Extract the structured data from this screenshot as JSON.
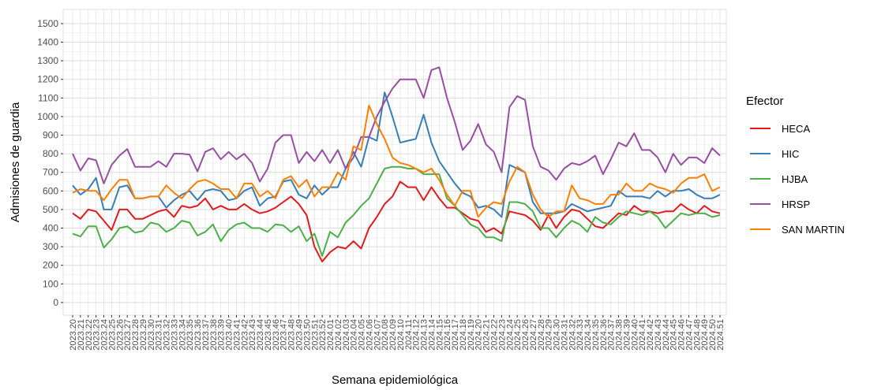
{
  "chart_data": {
    "type": "line",
    "x_label": "Semana epidemiológica",
    "y_label": "Admisiones de guardia",
    "legend_title": "Efector",
    "legend_position": "right",
    "grid": true,
    "categories": [
      "2023.20",
      "2023.21",
      "2023.22",
      "2023.23",
      "2023.24",
      "2023.25",
      "2023.26",
      "2023.27",
      "2023.28",
      "2023.29",
      "2023.30",
      "2023.31",
      "2023.32",
      "2023.33",
      "2023.34",
      "2023.35",
      "2023.36",
      "2023.37",
      "2023.38",
      "2023.39",
      "2023.40",
      "2023.41",
      "2023.42",
      "2023.43",
      "2023.44",
      "2023.45",
      "2023.46",
      "2023.47",
      "2023.48",
      "2023.49",
      "2023.50",
      "2023.51",
      "2023.52",
      "2024.01",
      "2024.02",
      "2024.03",
      "2024.04",
      "2024.05",
      "2024.06",
      "2024.07",
      "2024.08",
      "2024.09",
      "2024.10",
      "2024.11",
      "2024.12",
      "2024.13",
      "2024.14",
      "2024.15",
      "2024.16",
      "2024.17",
      "2024.18",
      "2024.19",
      "2024.20",
      "2024.21",
      "2024.22",
      "2024.23",
      "2024.24",
      "2024.25",
      "2024.26",
      "2024.27",
      "2024.28",
      "2024.29",
      "2024.30",
      "2024.31",
      "2024.32",
      "2024.33",
      "2024.34",
      "2024.35",
      "2024.36",
      "2024.37",
      "2024.38",
      "2024.39",
      "2024.40",
      "2024.41",
      "2024.42",
      "2024.43",
      "2024.44",
      "2024.45",
      "2024.46",
      "2024.47",
      "2024.48",
      "2024.49",
      "2024.50",
      "2024.51"
    ],
    "ylim": [
      -68,
      1576
    ],
    "yticks": [
      0,
      100,
      200,
      300,
      400,
      500,
      600,
      700,
      800,
      900,
      1000,
      1100,
      1200,
      1300,
      1400,
      1500
    ],
    "series": [
      {
        "name": "HECA",
        "color": "#e41a1c",
        "values": [
          480,
          450,
          500,
          490,
          440,
          390,
          500,
          500,
          450,
          450,
          470,
          490,
          500,
          460,
          520,
          510,
          520,
          560,
          500,
          520,
          500,
          500,
          530,
          500,
          480,
          490,
          510,
          540,
          570,
          530,
          470,
          300,
          220,
          270,
          300,
          290,
          330,
          290,
          400,
          460,
          530,
          570,
          650,
          620,
          620,
          550,
          620,
          560,
          510,
          510,
          480,
          450,
          440,
          380,
          400,
          370,
          490,
          480,
          470,
          440,
          390,
          470,
          400,
          460,
          500,
          490,
          450,
          410,
          400,
          440,
          480,
          470,
          520,
          490,
          490,
          480,
          490,
          490,
          530,
          500,
          480,
          520,
          490,
          480
        ]
      },
      {
        "name": "HIC",
        "color": "#377eb8",
        "values": [
          630,
          580,
          610,
          670,
          500,
          500,
          620,
          630,
          560,
          560,
          570,
          570,
          510,
          550,
          580,
          600,
          550,
          600,
          610,
          600,
          550,
          560,
          600,
          620,
          520,
          560,
          570,
          650,
          660,
          580,
          560,
          630,
          580,
          620,
          620,
          720,
          810,
          730,
          890,
          870,
          1130,
          1000,
          860,
          870,
          880,
          1010,
          860,
          760,
          700,
          640,
          590,
          570,
          510,
          520,
          500,
          460,
          740,
          720,
          700,
          540,
          480,
          480,
          480,
          490,
          530,
          510,
          490,
          500,
          510,
          520,
          600,
          570,
          570,
          570,
          560,
          600,
          570,
          600,
          600,
          610,
          580,
          560,
          560,
          580
        ]
      },
      {
        "name": "HJBA",
        "color": "#4daf4a",
        "values": [
          370,
          355,
          410,
          410,
          295,
          340,
          400,
          410,
          375,
          385,
          430,
          420,
          380,
          400,
          440,
          430,
          360,
          380,
          420,
          330,
          390,
          420,
          430,
          400,
          400,
          380,
          420,
          415,
          380,
          410,
          330,
          370,
          250,
          380,
          350,
          430,
          470,
          520,
          560,
          640,
          720,
          730,
          730,
          720,
          720,
          690,
          690,
          690,
          560,
          520,
          470,
          420,
          400,
          350,
          350,
          330,
          540,
          540,
          530,
          490,
          400,
          400,
          350,
          400,
          440,
          420,
          380,
          460,
          430,
          420,
          460,
          490,
          480,
          470,
          490,
          460,
          400,
          440,
          480,
          470,
          480,
          480,
          460,
          470
        ]
      },
      {
        "name": "HRSP",
        "color": "#984ea3",
        "values": [
          800,
          710,
          775,
          765,
          640,
          740,
          790,
          825,
          730,
          730,
          730,
          760,
          730,
          800,
          800,
          795,
          705,
          810,
          830,
          770,
          810,
          770,
          800,
          750,
          650,
          720,
          860,
          900,
          900,
          750,
          810,
          760,
          820,
          750,
          820,
          720,
          780,
          890,
          890,
          1000,
          1080,
          1150,
          1200,
          1200,
          1200,
          1100,
          1250,
          1265,
          1100,
          970,
          820,
          870,
          960,
          850,
          810,
          700,
          1050,
          1110,
          1090,
          840,
          730,
          710,
          660,
          720,
          750,
          740,
          760,
          790,
          690,
          770,
          860,
          840,
          910,
          820,
          820,
          780,
          700,
          800,
          740,
          780,
          780,
          750,
          830,
          790
        ]
      },
      {
        "name": "SAN MARTIN",
        "color": "#ff7f00",
        "values": [
          590,
          610,
          600,
          600,
          550,
          610,
          660,
          660,
          560,
          560,
          570,
          570,
          630,
          590,
          560,
          610,
          650,
          660,
          640,
          610,
          610,
          560,
          640,
          640,
          570,
          600,
          560,
          660,
          680,
          620,
          660,
          570,
          620,
          620,
          700,
          660,
          840,
          820,
          1060,
          960,
          880,
          780,
          750,
          740,
          720,
          700,
          720,
          660,
          580,
          520,
          600,
          600,
          460,
          510,
          540,
          530,
          650,
          730,
          700,
          580,
          500,
          460,
          490,
          490,
          630,
          560,
          550,
          530,
          530,
          580,
          580,
          640,
          600,
          600,
          640,
          620,
          610,
          590,
          640,
          670,
          670,
          690,
          600,
          620
        ]
      }
    ]
  }
}
